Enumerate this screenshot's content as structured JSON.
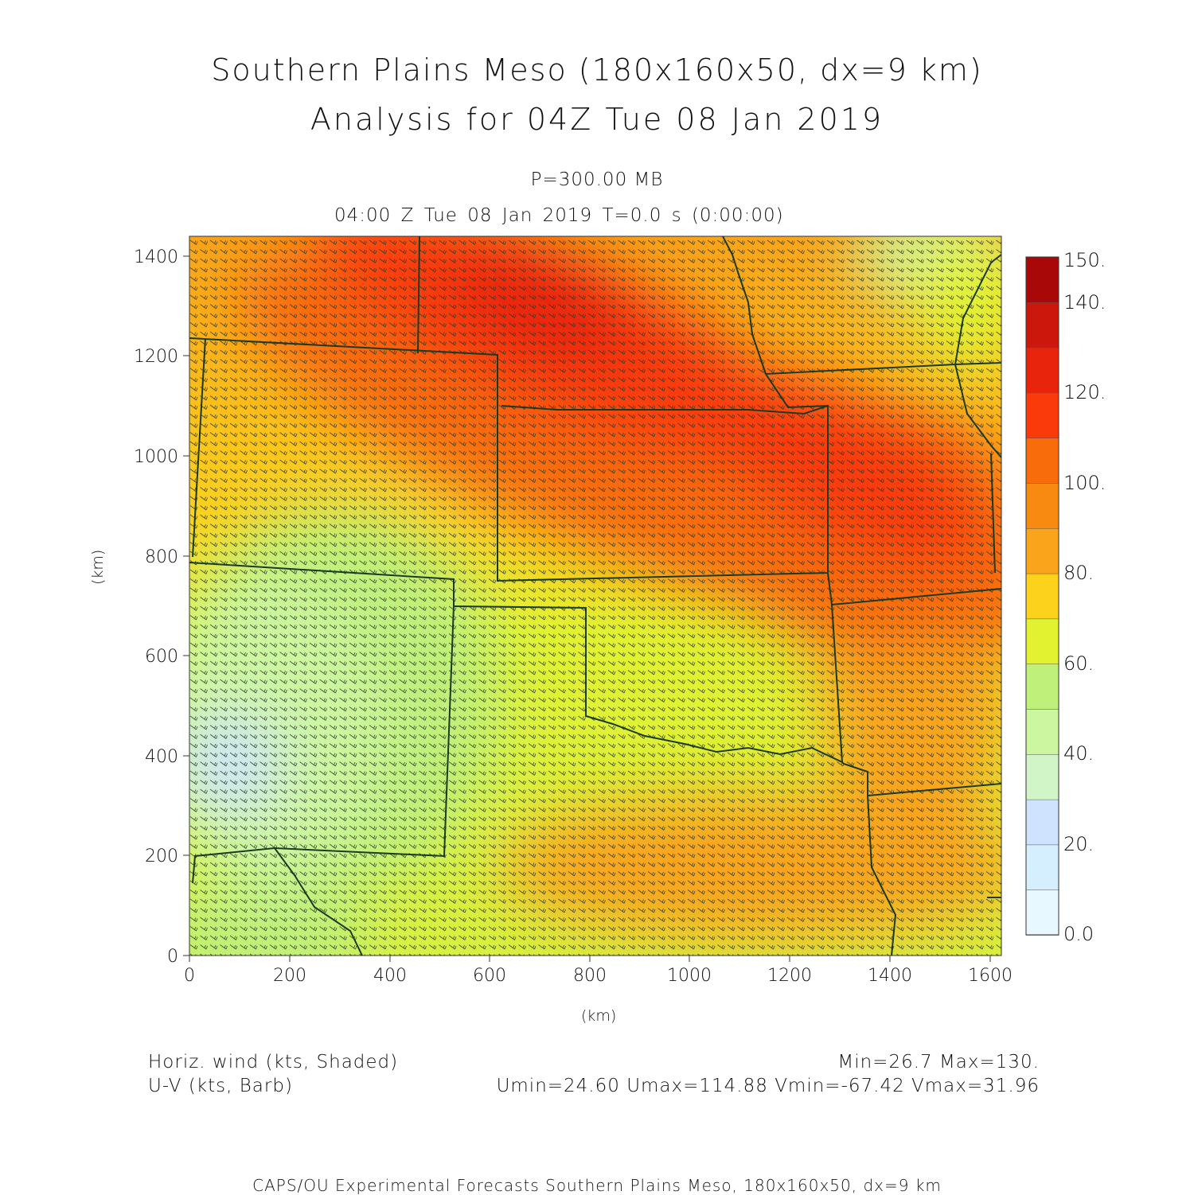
{
  "title_line1": "Southern Plains Meso (180x160x50, dx=9 km)",
  "title_line2": "Analysis for 04Z Tue 08 Jan 2019",
  "level": "P=300.00 MB",
  "valid_time": "04:00 Z Tue 08 Jan 2019    T=0.0 s (0:00:00)",
  "x_axis": {
    "unit": "(km)",
    "ticks": [
      "0",
      "200",
      "400",
      "600",
      "800",
      "1000",
      "1200",
      "1400",
      "1600"
    ]
  },
  "y_axis": {
    "unit": "(km)",
    "ticks": [
      "0",
      "200",
      "400",
      "600",
      "800",
      "1000",
      "1200",
      "1400"
    ]
  },
  "colorbar": {
    "labels": [
      "0.0",
      "20.",
      "40.",
      "60.",
      "80.",
      "100.",
      "120.",
      "140.",
      "150."
    ],
    "colors": [
      "#e8f8ff",
      "#d6efff",
      "#cfe3ff",
      "#d2f5c8",
      "#cdf6a0",
      "#bff07a",
      "#e2f230",
      "#fcd21c",
      "#f9a41a",
      "#f88a12",
      "#f96c0c",
      "#fa3a0a",
      "#e8240c",
      "#cc180c",
      "#a80808"
    ]
  },
  "legend": {
    "shaded": "Horiz. wind (kts, Shaded)",
    "barb": "U-V (kts, Barb)",
    "stats1": "Min=26.7 Max=130.",
    "stats2": "Umin=24.60 Umax=114.88 Vmin=-67.42 Vmax=31.96"
  },
  "footer": "CAPS/OU Experimental Forecasts  Southern Plains Meso, 180x160x50, dx=9 km"
}
